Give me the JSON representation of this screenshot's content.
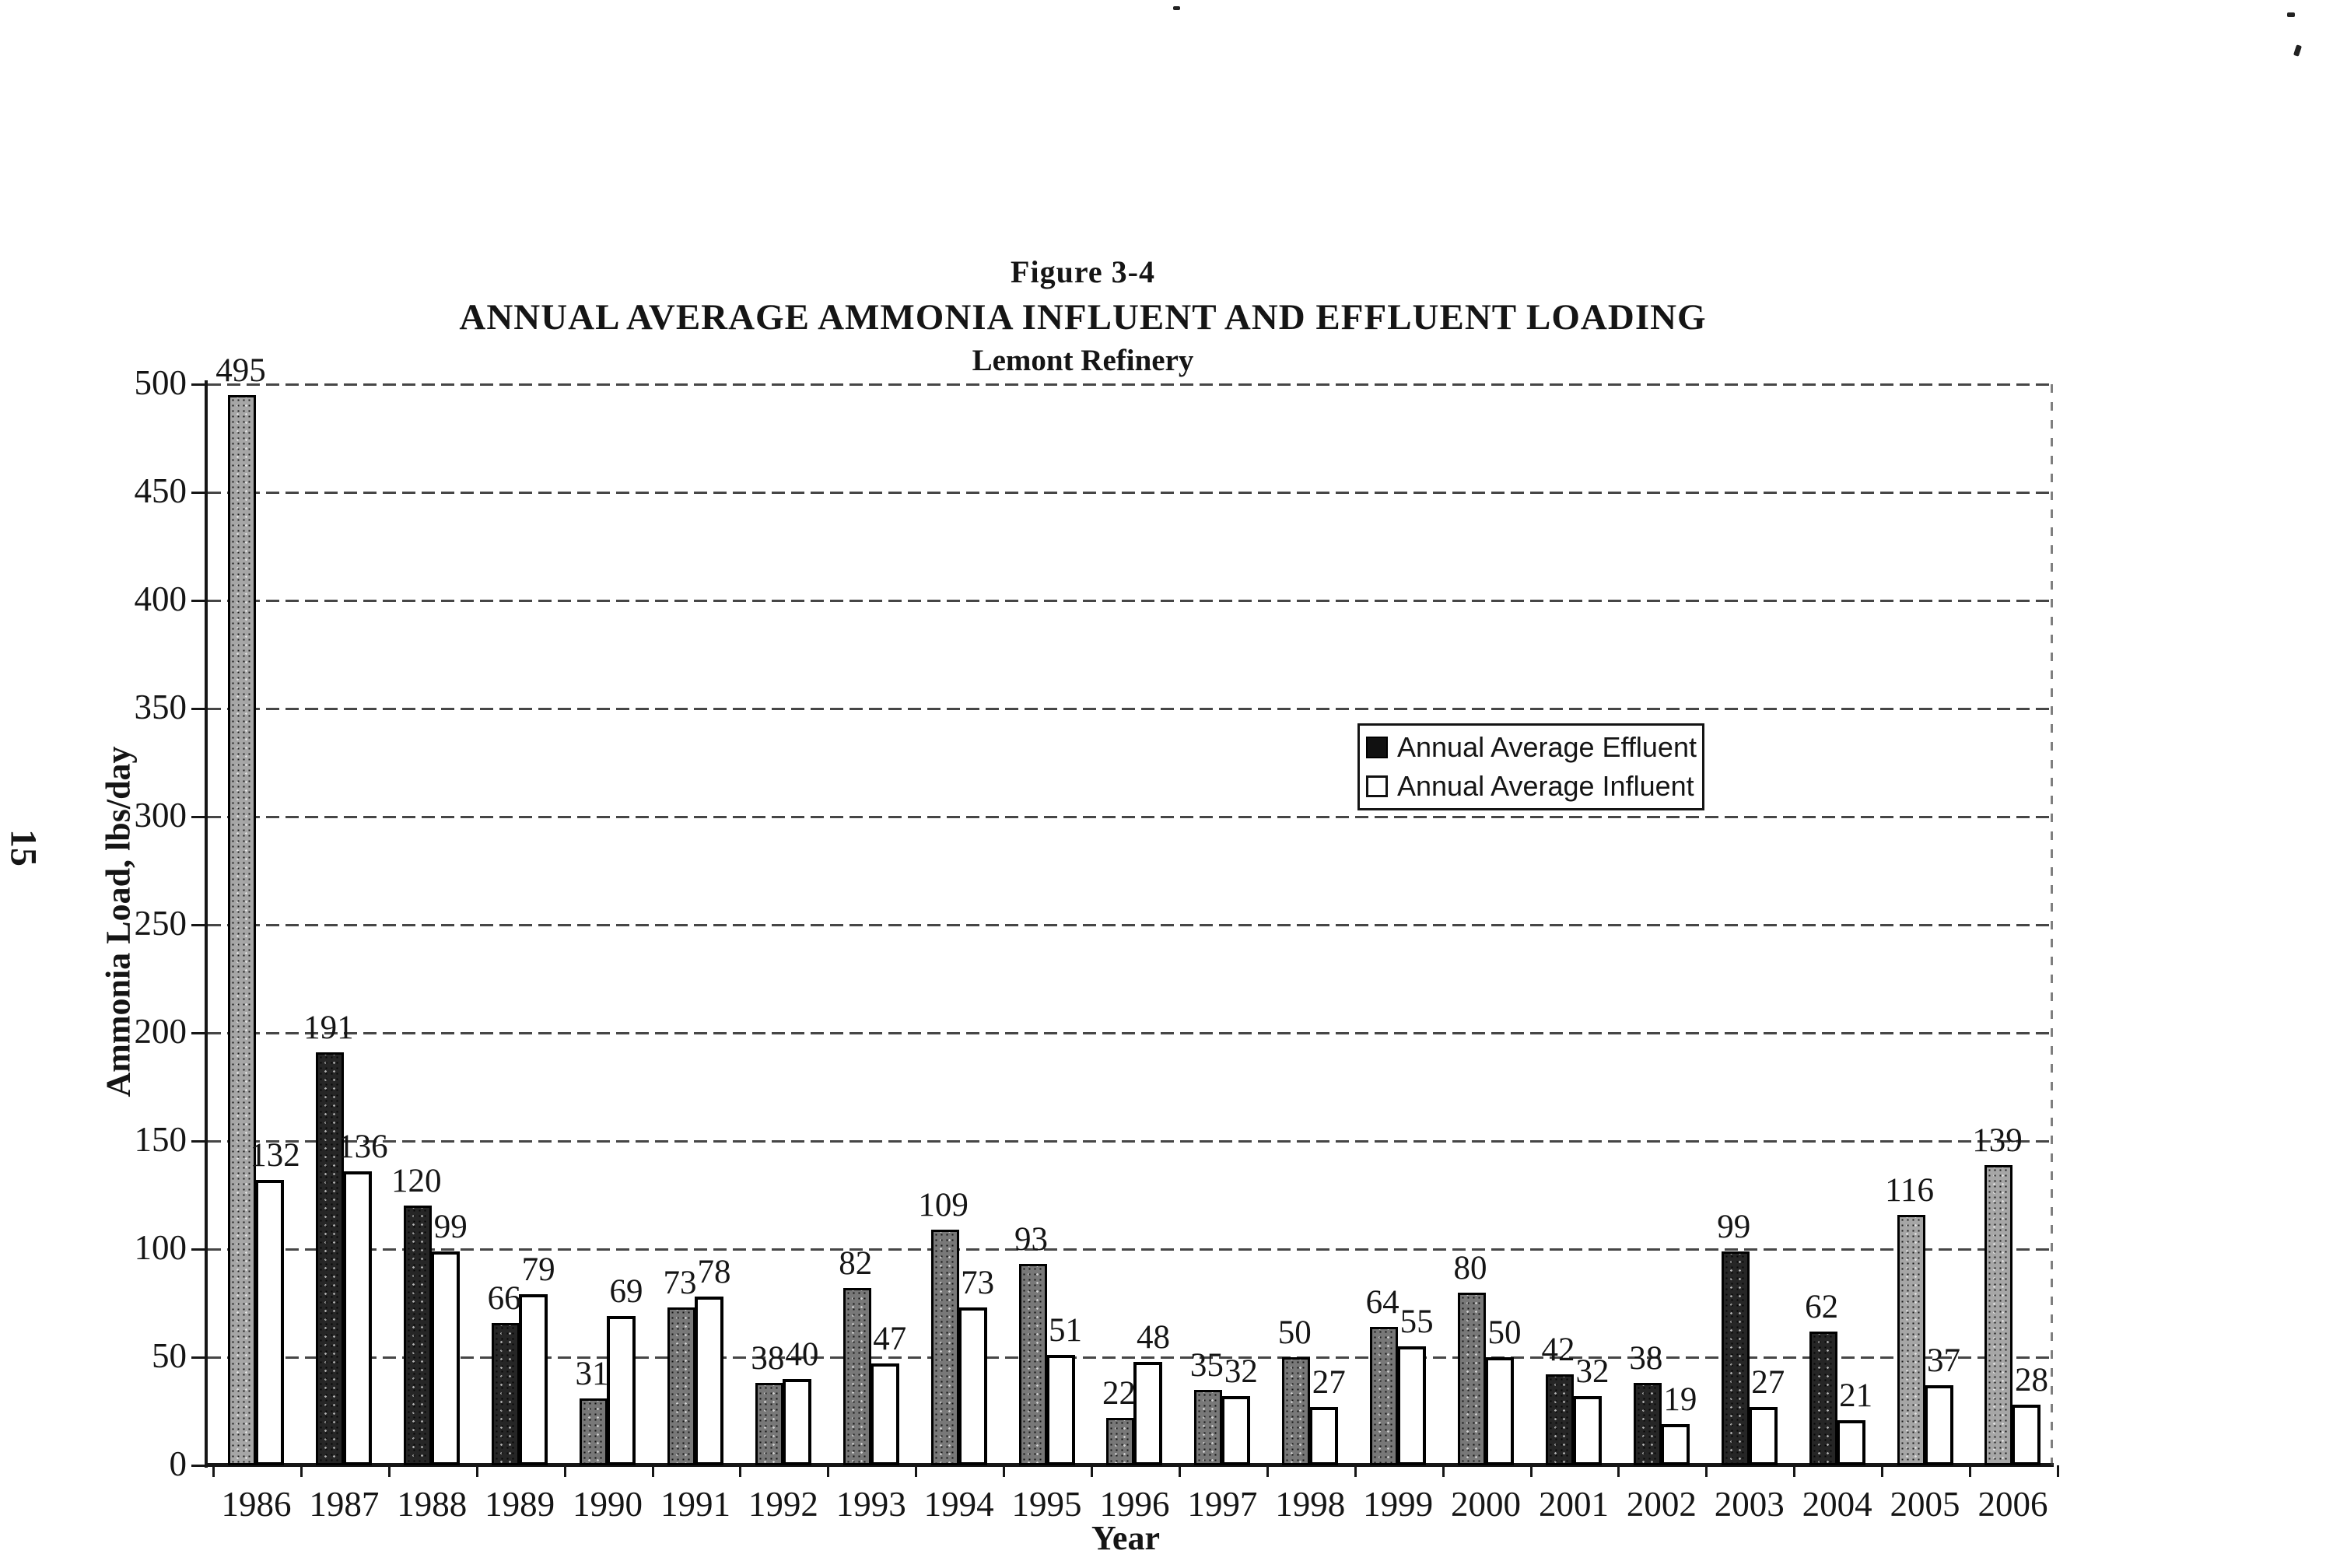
{
  "page": {
    "page_number": "15"
  },
  "title": {
    "figure": "Figure 3-4",
    "main": "ANNUAL AVERAGE AMMONIA INFLUENT AND EFFLUENT LOADING",
    "subtitle": "Lemont Refinery"
  },
  "chart_data": {
    "type": "bar",
    "title": "Figure 3-4 ANNUAL AVERAGE AMMONIA INFLUENT AND EFFLUENT LOADING - Lemont Refinery",
    "xlabel": "Year",
    "ylabel": "Ammonia Load, lbs/day",
    "ylim": [
      0,
      500
    ],
    "ytick_step": 50,
    "yticks": [
      "0",
      "50",
      "100",
      "150",
      "200",
      "250",
      "300",
      "350",
      "400",
      "450",
      "500"
    ],
    "grid": true,
    "legend_position": "center-right",
    "data_labels": true,
    "categories": [
      "1986",
      "1987",
      "1988",
      "1989",
      "1990",
      "1991",
      "1992",
      "1993",
      "1994",
      "1995",
      "1996",
      "1997",
      "1998",
      "1999",
      "2000",
      "2001",
      "2002",
      "2003",
      "2004",
      "2005",
      "2006"
    ],
    "series": [
      {
        "name": "Annual Average Effluent",
        "swatch": "filled-black",
        "values": [
          495,
          191,
          120,
          66,
          31,
          73,
          38,
          82,
          109,
          93,
          22,
          35,
          50,
          64,
          80,
          42,
          38,
          99,
          62,
          116,
          139
        ]
      },
      {
        "name": "Annual Average Influent",
        "swatch": "open-white",
        "values": [
          132,
          136,
          99,
          79,
          69,
          78,
          40,
          47,
          73,
          51,
          48,
          32,
          27,
          55,
          50,
          32,
          19,
          27,
          21,
          37,
          28
        ]
      }
    ],
    "effluent_bar_tones": [
      "light",
      "dark",
      "dark",
      "dark",
      "mid",
      "mid",
      "mid",
      "mid",
      "mid",
      "mid",
      "mid",
      "mid",
      "mid",
      "mid",
      "mid",
      "dark",
      "dark",
      "dark",
      "dark",
      "light",
      "light"
    ]
  },
  "colors": {
    "text": "#151515",
    "axis": "#161616",
    "bar_effluent_dark": "#262626",
    "bar_effluent_mid": "#787878",
    "bar_effluent_light": "#a6a6a6",
    "bar_influent": "#ffffff",
    "background": "#ffffff"
  }
}
